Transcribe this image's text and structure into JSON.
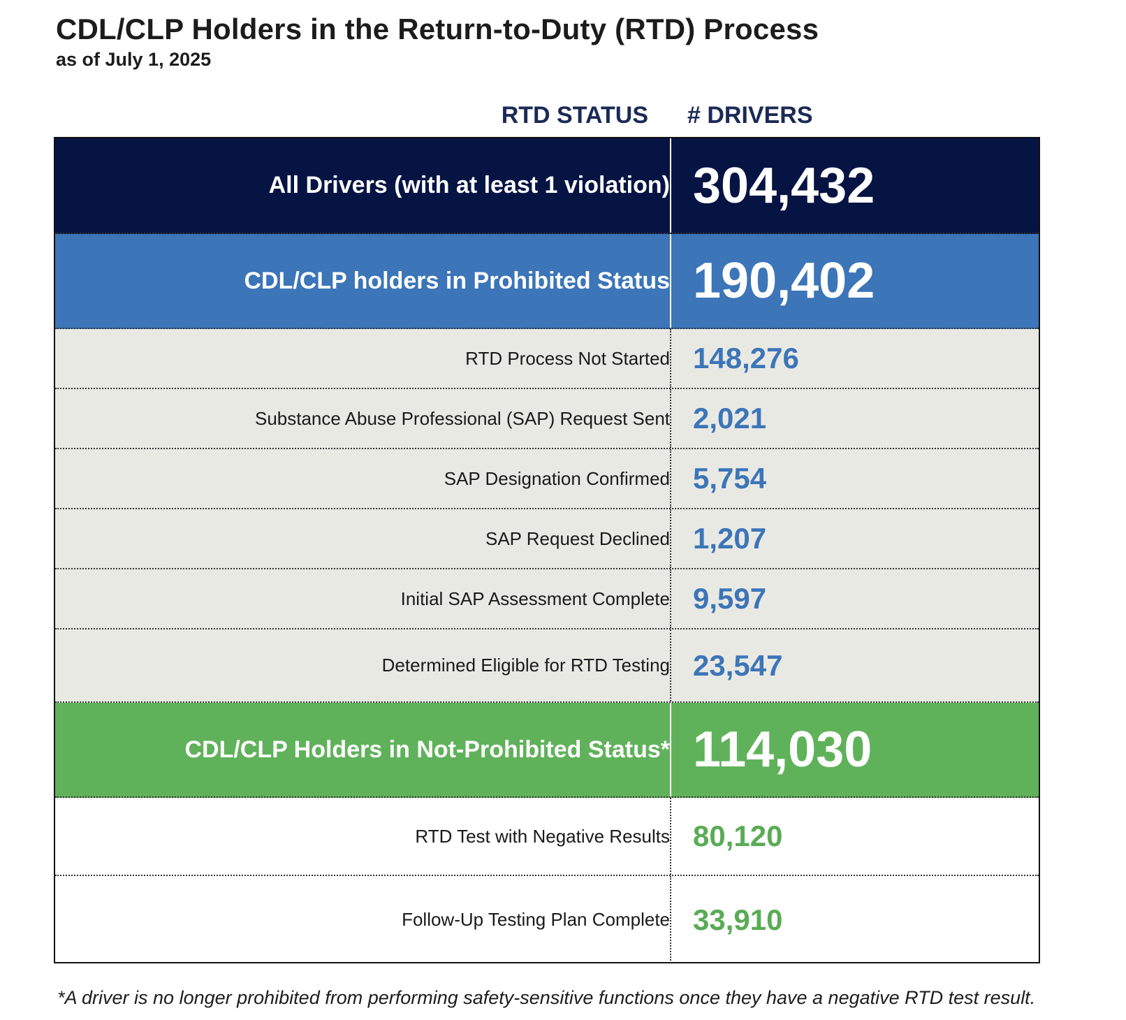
{
  "title": "CDL/CLP Holders in the Return-to-Duty (RTD) Process",
  "subtitle": "as of July 1, 2025",
  "columns": {
    "status": "RTD STATUS",
    "drivers": "# DRIVERS"
  },
  "rows": [
    {
      "label": "All Drivers (with at least 1 violation)",
      "value": "304,432"
    },
    {
      "label": "CDL/CLP holders in Prohibited Status",
      "value": "190,402"
    },
    {
      "label": "RTD Process Not Started",
      "value": "148,276"
    },
    {
      "label": "Substance Abuse Professional (SAP) Request Sent",
      "value": "2,021"
    },
    {
      "label": "SAP Designation Confirmed",
      "value": "5,754"
    },
    {
      "label": "SAP Request Declined",
      "value": "1,207"
    },
    {
      "label": "Initial SAP Assessment Complete",
      "value": "9,597"
    },
    {
      "label": "Determined Eligible for RTD Testing",
      "value": "23,547"
    },
    {
      "label": "CDL/CLP Holders in Not-Prohibited Status*",
      "value": "114,030"
    },
    {
      "label": "RTD Test with Negative Results",
      "value": "80,120"
    },
    {
      "label": "Follow-Up Testing Plan Complete",
      "value": "33,910"
    }
  ],
  "footnote": "*A driver is no longer prohibited from performing safety-sensitive functions once they have a negative RTD test result.",
  "colors": {
    "dark_navy": "#061444",
    "blue": "#3c75b8",
    "gray": "#e9e9e4",
    "green": "#60b25a",
    "header_text": "#1b2a55"
  }
}
